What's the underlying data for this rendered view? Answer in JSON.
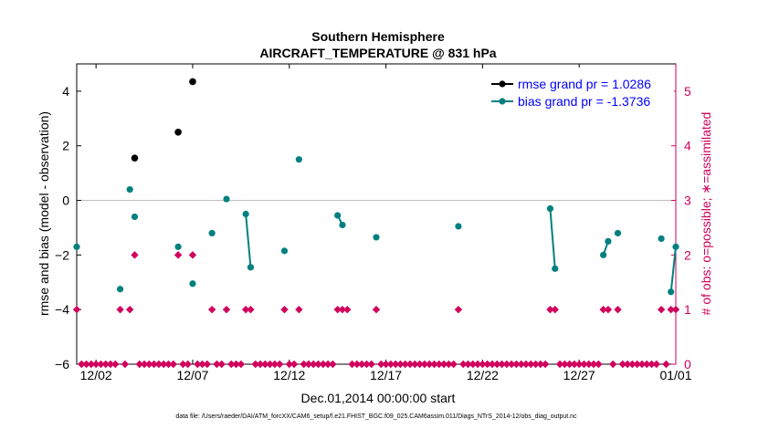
{
  "chart_data": {
    "type": "scatter",
    "title": "Southern Hemisphere",
    "subtitle": "AIRCRAFT_TEMPERATURE @ 831 hPa",
    "xlabel": "Dec.01,2014 00:00:00 start",
    "ylabel": "rmse and bias (model - observation)",
    "ylabel_right": "# of obs: o=possible; ∗=assimilated",
    "footnote": "data file: /Users/raeder/DAI/ATM_forcXX/CAM6_setup/f.e21.FHIST_BGC.f09_025.CAM6assim.011/Diags_NTrS_2014-12/obs_diag_output.nc",
    "x_unit": "days since Dec.01,2014",
    "xlim": [
      0,
      31
    ],
    "ylim": [
      -6,
      5
    ],
    "ylim_right": [
      0,
      5.5
    ],
    "xticks": [
      {
        "x": 1,
        "label": "12/02"
      },
      {
        "x": 6,
        "label": "12/07"
      },
      {
        "x": 11,
        "label": "12/12"
      },
      {
        "x": 16,
        "label": "12/17"
      },
      {
        "x": 21,
        "label": "12/22"
      },
      {
        "x": 26,
        "label": "12/27"
      },
      {
        "x": 31,
        "label": "01/01"
      }
    ],
    "yticks": [
      -6,
      -4,
      -2,
      0,
      2,
      4
    ],
    "yticks_right": [
      0,
      1,
      2,
      3,
      4,
      5
    ],
    "grid": false,
    "legend_position": "top-right",
    "colors": {
      "rmse": "#000000",
      "bias": "#00807f",
      "obs": "#d1005d",
      "zero_line": "#c0c0c0"
    },
    "legend": [
      {
        "label": "rmse grand pr = 1.0286",
        "color": "#000000"
      },
      {
        "label": "bias grand pr = -1.3736",
        "color": "#00807f"
      }
    ],
    "series": [
      {
        "name": "rmse grand pr = 1.0286",
        "color": "#000000",
        "axis": "left",
        "points": [
          [
            3.0,
            1.55
          ],
          [
            5.25,
            2.5
          ],
          [
            6.0,
            4.35
          ]
        ]
      },
      {
        "name": "bias grand pr = -1.3736",
        "color": "#00807f",
        "axis": "left",
        "points": [
          [
            0.0,
            -1.7
          ],
          [
            2.25,
            -3.25
          ],
          [
            2.75,
            0.4
          ],
          [
            3.0,
            -0.6
          ],
          [
            5.25,
            -1.7
          ],
          [
            6.0,
            -3.05
          ],
          [
            7.0,
            -1.2
          ],
          [
            7.75,
            0.05
          ],
          [
            8.75,
            -0.5
          ],
          [
            9.0,
            -2.45
          ],
          [
            10.75,
            -1.85
          ],
          [
            11.5,
            1.5
          ],
          [
            13.5,
            -0.55
          ],
          [
            13.75,
            -0.9
          ],
          [
            15.5,
            -1.35
          ],
          [
            19.75,
            -0.95
          ],
          [
            24.5,
            -0.3
          ],
          [
            24.75,
            -2.5
          ],
          [
            27.25,
            -2.0
          ],
          [
            27.5,
            -1.5
          ],
          [
            28.0,
            -1.2
          ],
          [
            30.25,
            -1.4
          ],
          [
            30.75,
            -3.35
          ],
          [
            31.0,
            -1.7
          ]
        ],
        "connected_segments": [
          [
            8.75,
            9.0
          ],
          [
            13.5,
            13.75
          ],
          [
            24.5,
            24.75
          ],
          [
            27.25,
            27.5
          ],
          [
            30.75,
            31.0
          ]
        ]
      },
      {
        "name": "# of obs possible",
        "color": "#d1005d",
        "axis": "right",
        "points": [
          [
            0.0,
            1
          ],
          [
            2.25,
            1
          ],
          [
            2.75,
            1
          ],
          [
            3.0,
            2
          ],
          [
            5.25,
            2
          ],
          [
            6.0,
            2
          ],
          [
            7.0,
            1
          ],
          [
            7.75,
            1
          ],
          [
            8.75,
            1
          ],
          [
            9.0,
            1
          ],
          [
            10.75,
            1
          ],
          [
            11.5,
            1
          ],
          [
            13.5,
            1
          ],
          [
            13.75,
            1
          ],
          [
            14.0,
            1
          ],
          [
            15.5,
            1
          ],
          [
            19.75,
            1
          ],
          [
            24.5,
            1
          ],
          [
            24.75,
            1
          ],
          [
            27.25,
            1
          ],
          [
            27.5,
            1
          ],
          [
            28.0,
            1
          ],
          [
            30.25,
            1
          ],
          [
            30.75,
            1
          ],
          [
            31.0,
            1
          ]
        ]
      },
      {
        "name": "# of obs zero",
        "color": "#d1005d",
        "axis": "right",
        "points": "every 0.25 day from 0 to 31 where no observation"
      }
    ]
  }
}
